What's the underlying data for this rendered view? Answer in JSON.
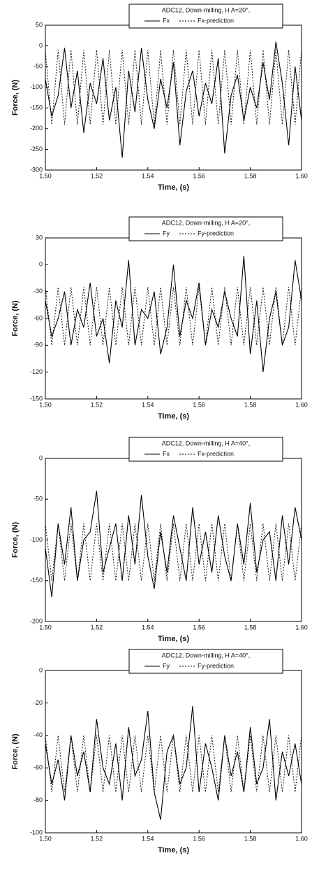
{
  "chart_data": [
    {
      "type": "line",
      "title": "ADC12, Down-milling, H A=20°,",
      "xlabel": "Time, (s)",
      "ylabel": "Force, (N)",
      "x": [
        1.5,
        1.5025,
        1.505,
        1.5075,
        1.51,
        1.5125,
        1.515,
        1.5175,
        1.52,
        1.5225,
        1.525,
        1.5275,
        1.53,
        1.5325,
        1.535,
        1.5375,
        1.54,
        1.5425,
        1.545,
        1.5475,
        1.55,
        1.5525,
        1.555,
        1.5575,
        1.56,
        1.5625,
        1.565,
        1.5675,
        1.57,
        1.5725,
        1.575,
        1.5775,
        1.58,
        1.5825,
        1.585,
        1.5875,
        1.59,
        1.5925,
        1.595,
        1.5975,
        1.6
      ],
      "series": [
        {
          "name": "Fx",
          "color": "#000000",
          "linestyle": "solid",
          "values": [
            -80,
            -170,
            -120,
            -5,
            -150,
            -60,
            -210,
            -90,
            -140,
            -30,
            -180,
            -100,
            -270,
            -60,
            -160,
            -5,
            -130,
            -200,
            -80,
            -150,
            -40,
            -240,
            -110,
            -60,
            -170,
            -90,
            -140,
            -30,
            -260,
            -120,
            -70,
            -180,
            -100,
            -150,
            -40,
            -130,
            10,
            -90,
            -240,
            -50,
            -180
          ]
        },
        {
          "name": "Fx-prediction",
          "color": "#000000",
          "linestyle": "dashed",
          "values": [
            -10,
            -190,
            -10,
            -190,
            -10,
            -190,
            -10,
            -190,
            -10,
            -190,
            -10,
            -190,
            -10,
            -190,
            -10,
            -190,
            -10,
            -190,
            -10,
            -190,
            -10,
            -190,
            -10,
            -190,
            -10,
            -190,
            -10,
            -190,
            -10,
            -190,
            -10,
            -190,
            -10,
            -190,
            -10,
            -190,
            -10,
            -190,
            -10,
            -190,
            -10
          ]
        }
      ],
      "xlim": [
        1.5,
        1.6
      ],
      "xticks": [
        {
          "value": 1.5,
          "label": "1.50"
        },
        {
          "value": 1.52,
          "label": "1.52"
        },
        {
          "value": 1.54,
          "label": "1.54"
        },
        {
          "value": 1.56,
          "label": "1.56"
        },
        {
          "value": 1.58,
          "label": "1.58"
        },
        {
          "value": 1.6,
          "label": "1.60"
        }
      ],
      "ylim": [
        -300,
        50
      ],
      "yticks": [
        50,
        0,
        -50,
        -100,
        -150,
        -200,
        -250,
        -300
      ]
    },
    {
      "type": "line",
      "title": "ADC12, Down-milling, H A=20°,",
      "xlabel": "Time, (s)",
      "ylabel": "Force, (N)",
      "x": [
        1.5,
        1.5025,
        1.505,
        1.5075,
        1.51,
        1.5125,
        1.515,
        1.5175,
        1.52,
        1.5225,
        1.525,
        1.5275,
        1.53,
        1.5325,
        1.535,
        1.5375,
        1.54,
        1.5425,
        1.545,
        1.5475,
        1.55,
        1.5525,
        1.555,
        1.5575,
        1.56,
        1.5625,
        1.565,
        1.5675,
        1.57,
        1.5725,
        1.575,
        1.5775,
        1.58,
        1.5825,
        1.585,
        1.5875,
        1.59,
        1.5925,
        1.595,
        1.5975,
        1.6
      ],
      "series": [
        {
          "name": "Fy",
          "color": "#000000",
          "linestyle": "solid",
          "values": [
            -40,
            -80,
            -60,
            -30,
            -90,
            -50,
            -70,
            -20,
            -80,
            -60,
            -110,
            -40,
            -70,
            5,
            -90,
            -50,
            -60,
            -30,
            -100,
            -70,
            0,
            -80,
            -40,
            -60,
            -20,
            -90,
            -50,
            -70,
            -30,
            -60,
            -80,
            10,
            -100,
            -40,
            -120,
            -60,
            -30,
            -90,
            -70,
            5,
            -40
          ]
        },
        {
          "name": "Fy-prediction",
          "color": "#000000",
          "linestyle": "dashed",
          "values": [
            -25,
            -90,
            -25,
            -90,
            -25,
            -90,
            -25,
            -90,
            -25,
            -90,
            -25,
            -90,
            -25,
            -90,
            -25,
            -90,
            -25,
            -90,
            -25,
            -90,
            -25,
            -90,
            -25,
            -90,
            -25,
            -90,
            -25,
            -90,
            -25,
            -90,
            -25,
            -90,
            -25,
            -90,
            -25,
            -90,
            -25,
            -90,
            -25,
            -90,
            -25
          ]
        }
      ],
      "xlim": [
        1.5,
        1.6
      ],
      "xticks": [
        {
          "value": 1.5,
          "label": "1.50"
        },
        {
          "value": 1.52,
          "label": "1.52"
        },
        {
          "value": 1.54,
          "label": "1.54"
        },
        {
          "value": 1.56,
          "label": "1.56"
        },
        {
          "value": 1.58,
          "label": "1.58"
        },
        {
          "value": 1.6,
          "label": "1.60"
        }
      ],
      "ylim": [
        -150,
        30
      ],
      "yticks": [
        30,
        0,
        -30,
        -60,
        -90,
        -120,
        -150
      ]
    },
    {
      "type": "line",
      "title": "ADC12, Down-milling, H A=40°,",
      "xlabel": "Time, (s)",
      "ylabel": "Force, (N)",
      "x": [
        1.5,
        1.5025,
        1.505,
        1.5075,
        1.51,
        1.5125,
        1.515,
        1.5175,
        1.52,
        1.5225,
        1.525,
        1.5275,
        1.53,
        1.5325,
        1.535,
        1.5375,
        1.54,
        1.5425,
        1.545,
        1.5475,
        1.55,
        1.5525,
        1.555,
        1.5575,
        1.56,
        1.5625,
        1.565,
        1.5675,
        1.57,
        1.5725,
        1.575,
        1.5775,
        1.58,
        1.5825,
        1.585,
        1.5875,
        1.59,
        1.5925,
        1.595,
        1.5975,
        1.6
      ],
      "series": [
        {
          "name": "Fx",
          "color": "#000000",
          "linestyle": "solid",
          "values": [
            -110,
            -170,
            -80,
            -130,
            -60,
            -150,
            -100,
            -90,
            -40,
            -140,
            -110,
            -80,
            -150,
            -70,
            -130,
            -45,
            -120,
            -160,
            -90,
            -140,
            -70,
            -110,
            -150,
            -60,
            -130,
            -90,
            -140,
            -70,
            -120,
            -150,
            -80,
            -130,
            -55,
            -140,
            -100,
            -90,
            -150,
            -70,
            -130,
            -60,
            -100
          ]
        },
        {
          "name": "Fx-prediction",
          "color": "#000000",
          "linestyle": "dashed",
          "values": [
            -80,
            -150,
            -80,
            -150,
            -80,
            -150,
            -80,
            -150,
            -80,
            -150,
            -80,
            -150,
            -80,
            -150,
            -80,
            -150,
            -80,
            -150,
            -80,
            -150,
            -80,
            -150,
            -80,
            -150,
            -80,
            -150,
            -80,
            -150,
            -80,
            -150,
            -80,
            -150,
            -80,
            -150,
            -80,
            -150,
            -80,
            -150,
            -80,
            -150,
            -80
          ]
        }
      ],
      "xlim": [
        1.5,
        1.6
      ],
      "xticks": [
        {
          "value": 1.5,
          "label": "1.50"
        },
        {
          "value": 1.52,
          "label": "1.52"
        },
        {
          "value": 1.54,
          "label": "1.54"
        },
        {
          "value": 1.56,
          "label": "1.56"
        },
        {
          "value": 1.58,
          "label": "1.58"
        },
        {
          "value": 1.6,
          "label": "1.60"
        }
      ],
      "ylim": [
        -200,
        0
      ],
      "yticks": [
        0,
        -50,
        -100,
        -150,
        -200
      ]
    },
    {
      "type": "line",
      "title": "ADC12, Down-milling, H A=40°,",
      "xlabel": "Time, (s)",
      "ylabel": "Force, (N)",
      "x": [
        1.5,
        1.5025,
        1.505,
        1.5075,
        1.51,
        1.5125,
        1.515,
        1.5175,
        1.52,
        1.5225,
        1.525,
        1.5275,
        1.53,
        1.5325,
        1.535,
        1.5375,
        1.54,
        1.5425,
        1.545,
        1.5475,
        1.55,
        1.5525,
        1.555,
        1.5575,
        1.56,
        1.5625,
        1.565,
        1.5675,
        1.57,
        1.5725,
        1.575,
        1.5775,
        1.58,
        1.5825,
        1.585,
        1.5875,
        1.59,
        1.5925,
        1.595,
        1.5975,
        1.6
      ],
      "series": [
        {
          "name": "Fy",
          "color": "#000000",
          "linestyle": "solid",
          "values": [
            -45,
            -70,
            -55,
            -80,
            -40,
            -65,
            -50,
            -75,
            -30,
            -60,
            -70,
            -45,
            -80,
            -35,
            -65,
            -55,
            -25,
            -75,
            -92,
            -50,
            -40,
            -70,
            -60,
            -22,
            -75,
            -45,
            -60,
            -80,
            -40,
            -65,
            -50,
            -75,
            -35,
            -70,
            -60,
            -30,
            -80,
            -50,
            -65,
            -45,
            -70
          ]
        },
        {
          "name": "Fy-prediction",
          "color": "#000000",
          "linestyle": "dashed",
          "values": [
            -40,
            -75,
            -40,
            -75,
            -40,
            -75,
            -40,
            -75,
            -40,
            -75,
            -40,
            -75,
            -40,
            -75,
            -40,
            -75,
            -40,
            -75,
            -40,
            -75,
            -40,
            -75,
            -40,
            -75,
            -40,
            -75,
            -40,
            -75,
            -40,
            -75,
            -40,
            -75,
            -40,
            -75,
            -40,
            -75,
            -40,
            -75,
            -40,
            -75,
            -40
          ]
        }
      ],
      "xlim": [
        1.5,
        1.6
      ],
      "xticks": [
        {
          "value": 1.5,
          "label": "1.50"
        },
        {
          "value": 1.52,
          "label": "1.52"
        },
        {
          "value": 1.54,
          "label": "1.54"
        },
        {
          "value": 1.56,
          "label": "1.56"
        },
        {
          "value": 1.58,
          "label": "1.58"
        },
        {
          "value": 1.6,
          "label": "1.60"
        }
      ],
      "ylim": [
        -100,
        0
      ],
      "yticks": [
        0,
        -20,
        -40,
        -60,
        -80,
        -100
      ]
    }
  ]
}
